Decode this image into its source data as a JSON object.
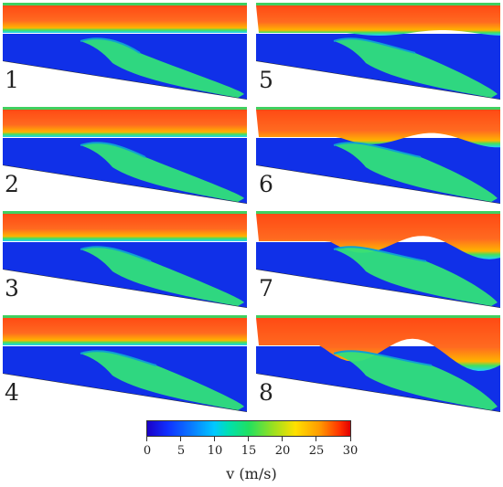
{
  "panels": [
    {
      "label": "1"
    },
    {
      "label": "2"
    },
    {
      "label": "3"
    },
    {
      "label": "4"
    },
    {
      "label": "5"
    },
    {
      "label": "6"
    },
    {
      "label": "7"
    },
    {
      "label": "8"
    }
  ],
  "colorbar": {
    "min": 0,
    "max": 30,
    "ticks": [
      "0",
      "5",
      "10",
      "15",
      "20",
      "25",
      "30"
    ],
    "label": "v (m/s)",
    "colormap": [
      "#1a00c8",
      "#0a7cff",
      "#00c8ff",
      "#20e060",
      "#ffe000",
      "#ff9a00",
      "#e00000"
    ]
  },
  "colors": {
    "jet_top": "#ff5a1e",
    "liquid": "#1030e8",
    "plume": "#32e07a"
  }
}
